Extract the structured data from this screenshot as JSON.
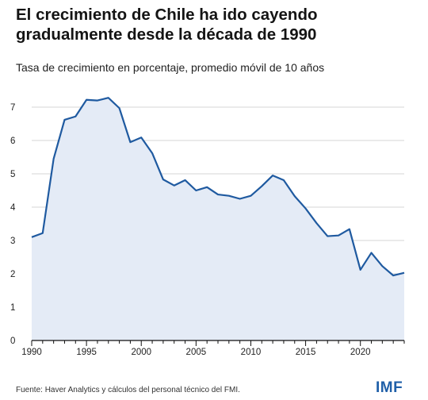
{
  "header": {
    "title": "El crecimiento de Chile ha ido cayendo gradualmente desde la década de 1990",
    "subtitle": "Tasa de crecimiento en porcentaje, promedio móvil de 10 años"
  },
  "footer": {
    "source": "Fuente: Haver Analytics y cálculos del personal técnico del FMI.",
    "logo": "IMF"
  },
  "colors": {
    "line": "#1f5aa0",
    "area": "#e4ebf6",
    "grid": "#d4d4d4",
    "logo": "#1f5fa8"
  },
  "chart_data": {
    "type": "area",
    "title": "El crecimiento de Chile ha ido cayendo gradualmente desde la década de 1990",
    "subtitle": "Tasa de crecimiento en porcentaje, promedio móvil de 10 años",
    "xlabel": "",
    "ylabel": "",
    "xlim": [
      1990,
      2024
    ],
    "ylim": [
      0,
      7.5
    ],
    "x_ticks": [
      1990,
      1995,
      2000,
      2005,
      2010,
      2015,
      2020
    ],
    "y_ticks": [
      0,
      1,
      2,
      3,
      4,
      5,
      6,
      7
    ],
    "grid": true,
    "legend": "none",
    "x": [
      1990,
      1991,
      1992,
      1993,
      1994,
      1995,
      1996,
      1997,
      1998,
      1999,
      2000,
      2001,
      2002,
      2003,
      2004,
      2005,
      2006,
      2007,
      2008,
      2009,
      2010,
      2011,
      2012,
      2013,
      2014,
      2015,
      2016,
      2017,
      2018,
      2019,
      2020,
      2021,
      2022,
      2023,
      2024
    ],
    "values": [
      3.1,
      3.22,
      5.45,
      6.62,
      6.72,
      7.22,
      7.2,
      7.28,
      6.97,
      5.95,
      6.09,
      5.62,
      4.83,
      4.65,
      4.81,
      4.5,
      4.6,
      4.38,
      4.34,
      4.25,
      4.34,
      4.63,
      4.95,
      4.81,
      4.33,
      3.96,
      3.52,
      3.13,
      3.15,
      3.34,
      2.12,
      2.63,
      2.23,
      1.95,
      2.03
    ]
  }
}
